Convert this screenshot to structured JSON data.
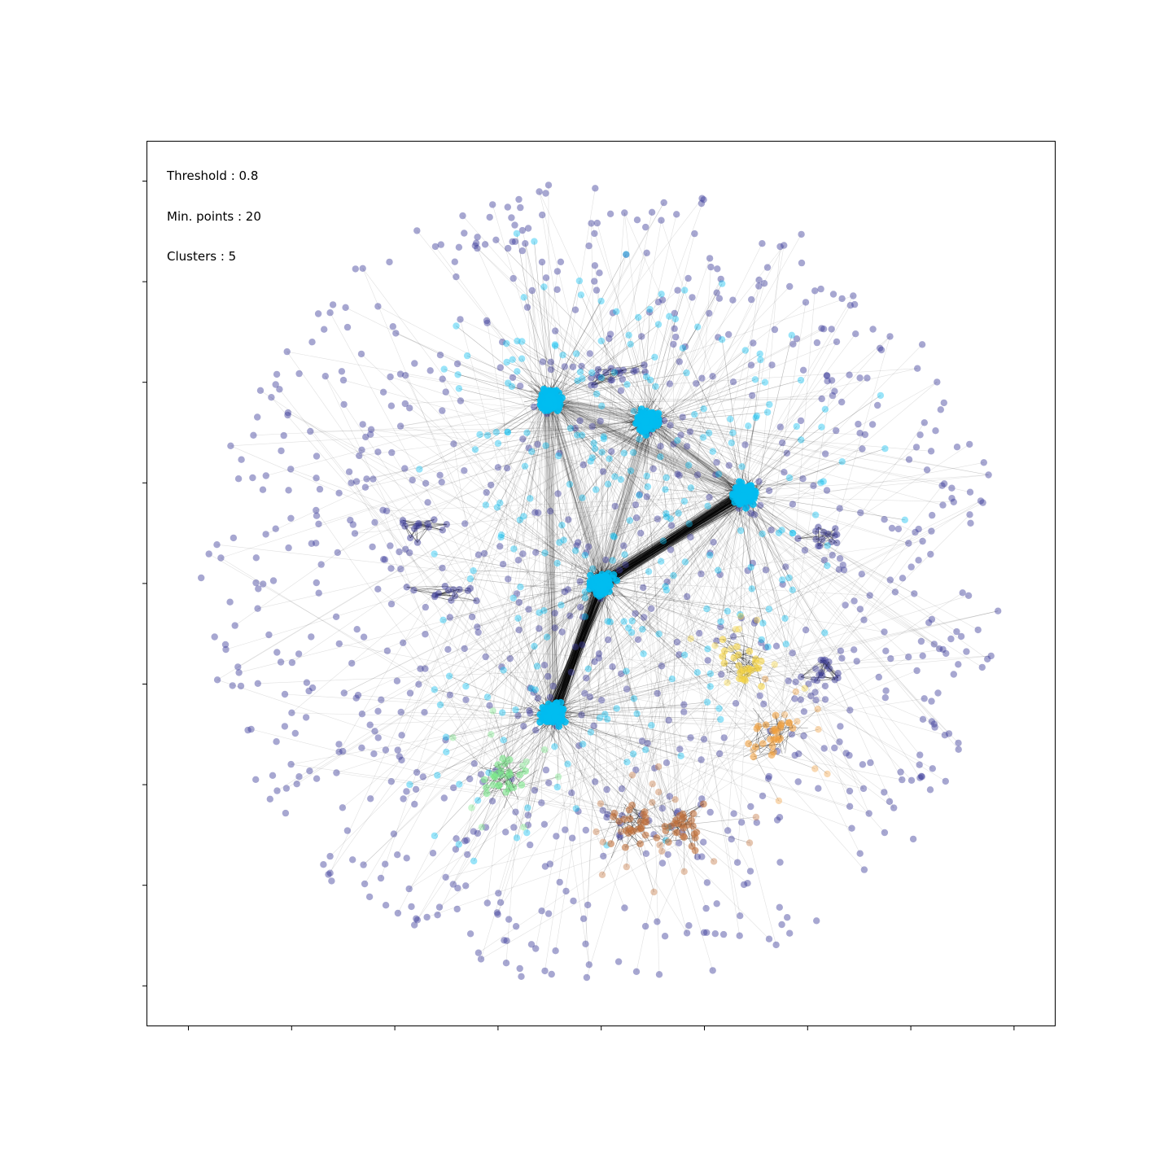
{
  "chart_data": {
    "type": "scatter",
    "title": "",
    "xlabel": "",
    "ylabel": "",
    "x_ticks": 9,
    "y_ticks": 9,
    "tick_labels_shown": false,
    "grid": false,
    "legend": "none",
    "annotations": [
      "Threshold :  0.8",
      "Min. points : 20",
      "Clusters : 5"
    ],
    "node_colors": {
      "noise": "#3b3b98",
      "cluster_cyan": "#00bcf0",
      "cluster_green": "#7be88a",
      "cluster_orange": "#f0a040",
      "cluster_yellow": "#f5d442",
      "cluster_brown": "#c0703a",
      "edge": "#000000"
    },
    "clusters": [
      {
        "name": "cyan",
        "color": "cluster_cyan",
        "hubs": [
          [
            0.0,
            0.0
          ],
          [
            0.35,
            0.22
          ],
          [
            -0.12,
            -0.32
          ],
          [
            -0.13,
            0.45
          ],
          [
            0.11,
            0.4
          ]
        ]
      },
      {
        "name": "green",
        "color": "cluster_green",
        "hubs": [
          [
            -0.24,
            -0.48
          ]
        ]
      },
      {
        "name": "orange",
        "color": "cluster_orange",
        "hubs": [
          [
            0.42,
            -0.37
          ]
        ]
      },
      {
        "name": "yellow",
        "color": "cluster_yellow",
        "hubs": [
          [
            0.35,
            -0.2
          ]
        ]
      },
      {
        "name": "brown",
        "color": "cluster_brown",
        "hubs": [
          [
            0.08,
            -0.6
          ],
          [
            0.21,
            -0.6
          ]
        ]
      }
    ],
    "noise_groups": [
      [
        -0.45,
        0.14
      ],
      [
        -0.39,
        -0.02
      ],
      [
        0.54,
        0.12
      ],
      [
        0.53,
        -0.22
      ],
      [
        0.03,
        0.52
      ]
    ]
  }
}
